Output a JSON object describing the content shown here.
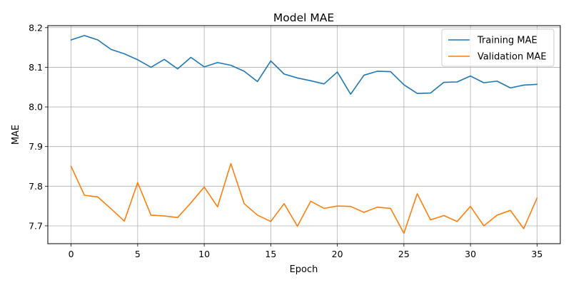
{
  "chart_data": {
    "type": "line",
    "title": "Model MAE",
    "xlabel": "Epoch",
    "ylabel": "MAE",
    "xlim": [
      -1.75,
      36.75
    ],
    "ylim": [
      7.655,
      8.205
    ],
    "x_ticks": [
      0,
      5,
      10,
      15,
      20,
      25,
      30,
      35
    ],
    "x_tick_labels": [
      "0",
      "5",
      "10",
      "15",
      "20",
      "25",
      "30",
      "35"
    ],
    "y_ticks": [
      7.7,
      7.8,
      7.9,
      8.0,
      8.1,
      8.2
    ],
    "y_tick_labels": [
      "7.7",
      "7.8",
      "7.9",
      "8.0",
      "8.1",
      "8.2"
    ],
    "grid": true,
    "legend_position": "upper right",
    "x": [
      0,
      1,
      2,
      3,
      4,
      5,
      6,
      7,
      8,
      9,
      10,
      11,
      12,
      13,
      14,
      15,
      16,
      17,
      18,
      19,
      20,
      21,
      22,
      23,
      24,
      25,
      26,
      27,
      28,
      29,
      30,
      31,
      32,
      33,
      34,
      35
    ],
    "series": [
      {
        "name": "Training MAE",
        "color": "#1f77b4",
        "values": [
          8.169,
          8.18,
          8.169,
          8.145,
          8.134,
          8.119,
          8.1,
          8.12,
          8.096,
          8.125,
          8.101,
          8.112,
          8.105,
          8.09,
          8.064,
          8.116,
          8.083,
          8.073,
          8.066,
          8.058,
          8.088,
          8.032,
          8.08,
          8.09,
          8.089,
          8.056,
          8.034,
          8.035,
          8.062,
          8.063,
          8.078,
          8.061,
          8.065,
          8.048,
          8.055,
          8.057
        ]
      },
      {
        "name": "Validation MAE",
        "color": "#ff7f0e",
        "values": [
          7.85,
          7.777,
          7.773,
          7.743,
          7.712,
          7.809,
          7.727,
          7.725,
          7.721,
          7.758,
          7.798,
          7.748,
          7.857,
          7.756,
          7.727,
          7.711,
          7.756,
          7.699,
          7.762,
          7.744,
          7.75,
          7.749,
          7.734,
          7.747,
          7.744,
          7.681,
          7.781,
          7.715,
          7.726,
          7.711,
          7.749,
          7.7,
          7.727,
          7.739,
          7.693,
          7.77
        ]
      }
    ]
  }
}
